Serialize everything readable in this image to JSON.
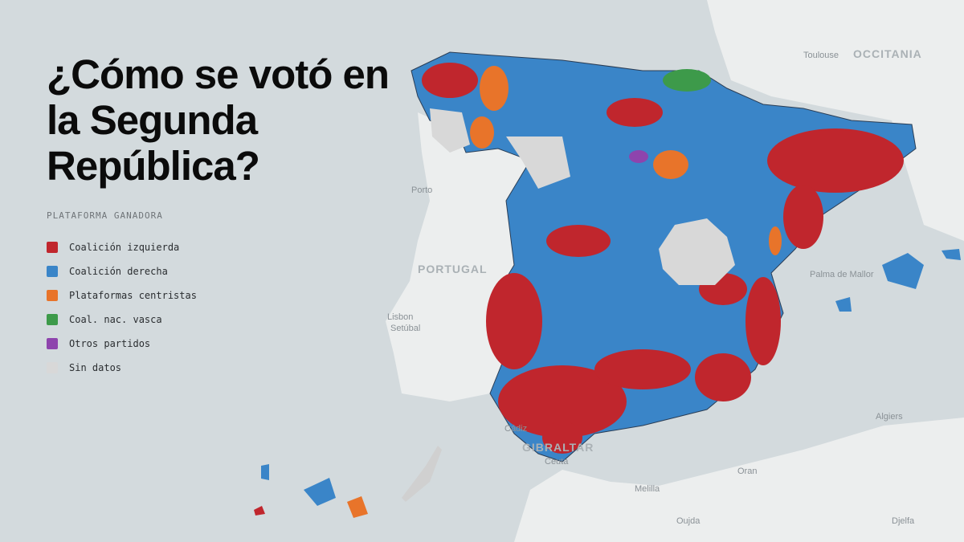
{
  "title": "¿Cómo se votó en la Segunda República?",
  "legend": {
    "title": "PLATAFORMA GANADORA",
    "items": [
      {
        "label": "Coalición izquierda",
        "color": "#c0262d"
      },
      {
        "label": "Coalición derecha",
        "color": "#3a85c8"
      },
      {
        "label": "Plataformas centristas",
        "color": "#e8742a"
      },
      {
        "label": "Coal. nac. vasca",
        "color": "#3d9a4a"
      },
      {
        "label": "Otros partidos",
        "color": "#8e44ad"
      },
      {
        "label": "Sin datos",
        "color": "#d8d8d8"
      }
    ]
  },
  "places": [
    {
      "label": "Toulouse",
      "kind": "city"
    },
    {
      "label": "OCCITANIA",
      "kind": "region"
    },
    {
      "label": "Porto",
      "kind": "city"
    },
    {
      "label": "PORTUGAL",
      "kind": "country"
    },
    {
      "label": "Lisbon",
      "kind": "city"
    },
    {
      "label": "Setúbal",
      "kind": "city"
    },
    {
      "label": "Palma de Mallor",
      "kind": "city"
    },
    {
      "label": "Algiers",
      "kind": "city"
    },
    {
      "label": "Cádiz",
      "kind": "city"
    },
    {
      "label": "GIBRALTAR",
      "kind": "region"
    },
    {
      "label": "Ceuta",
      "kind": "city"
    },
    {
      "label": "Oran",
      "kind": "city"
    },
    {
      "label": "Melilla",
      "kind": "city"
    },
    {
      "label": "Oujda",
      "kind": "city"
    },
    {
      "label": "Djelfa",
      "kind": "city"
    }
  ]
}
